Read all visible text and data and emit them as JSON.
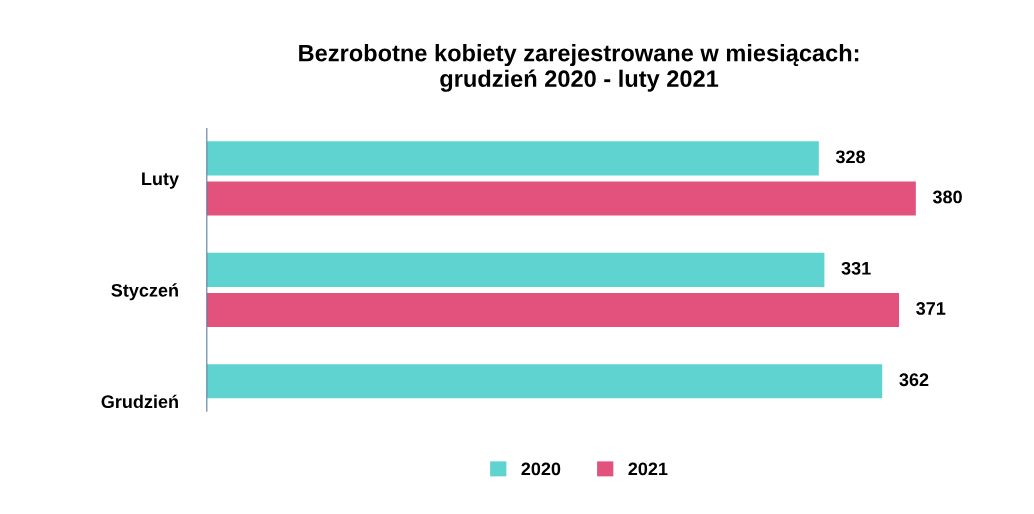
{
  "chart_data": {
    "type": "bar",
    "orientation": "horizontal",
    "title": "Bezrobotne kobiety zarejestrowane w miesiącach:\ngrudzień 2020 - luty 2021",
    "categories": [
      "Luty",
      "Styczeń",
      "Grudzień"
    ],
    "series": [
      {
        "name": "2020",
        "color": "#5ed3cf",
        "values": [
          328,
          331,
          362
        ]
      },
      {
        "name": "2021",
        "color": "#e2527c",
        "values": [
          380,
          371,
          null
        ]
      }
    ],
    "tick_labels": "y",
    "data_labels": true,
    "legend": "bottom",
    "grid": false
  }
}
